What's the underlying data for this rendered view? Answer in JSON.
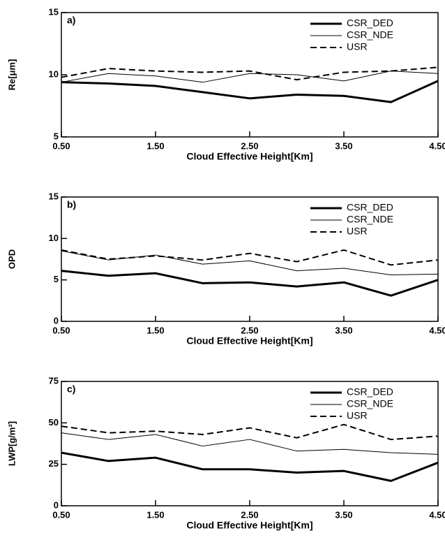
{
  "chart_data": [
    {
      "type": "line",
      "annotation": "a)",
      "x_label": "Cloud Effective Height[Km]",
      "y_label": "Re[μm]",
      "x": [
        0.5,
        1.0,
        1.5,
        2.0,
        2.5,
        3.0,
        3.5,
        4.0,
        4.5
      ],
      "xlim": [
        0.5,
        4.5
      ],
      "xticks": [
        {
          "value": 0.5,
          "label": "0.50"
        },
        {
          "value": 1.5,
          "label": "1.50"
        },
        {
          "value": 2.5,
          "label": "2.50"
        },
        {
          "value": 3.5,
          "label": "3.50"
        },
        {
          "value": 4.5,
          "label": "4.50"
        }
      ],
      "ylim": [
        5,
        15
      ],
      "yticks": [
        5,
        10,
        15
      ],
      "legend": "upper right",
      "series": [
        {
          "name": "CSR_DED",
          "color": "#000000",
          "width": 3,
          "dash": false,
          "values": [
            9.4,
            9.3,
            9.1,
            8.6,
            8.1,
            8.4,
            8.3,
            7.8,
            9.5
          ]
        },
        {
          "name": "CSR_NDE",
          "color": "#000000",
          "width": 1,
          "dash": false,
          "values": [
            9.4,
            10.1,
            9.9,
            9.4,
            10.1,
            10.0,
            9.5,
            10.3,
            10.1
          ]
        },
        {
          "name": "USR",
          "color": "#000000",
          "width": 2,
          "dash": true,
          "values": [
            9.8,
            10.5,
            10.3,
            10.2,
            10.3,
            9.6,
            10.2,
            10.3,
            10.6
          ]
        }
      ]
    },
    {
      "type": "line",
      "annotation": "b)",
      "x_label": "Cloud Effective Height[Km]",
      "y_label": "OPD",
      "x": [
        0.5,
        1.0,
        1.5,
        2.0,
        2.5,
        3.0,
        3.5,
        4.0,
        4.5
      ],
      "xlim": [
        0.5,
        4.5
      ],
      "xticks": [
        {
          "value": 0.5,
          "label": "0.50"
        },
        {
          "value": 1.5,
          "label": "1.50"
        },
        {
          "value": 2.5,
          "label": "2.50"
        },
        {
          "value": 3.5,
          "label": "3.50"
        },
        {
          "value": 4.5,
          "label": "4.50"
        }
      ],
      "ylim": [
        0,
        15
      ],
      "yticks": [
        0,
        5,
        10,
        15
      ],
      "legend": "upper right",
      "series": [
        {
          "name": "CSR_DED",
          "color": "#000000",
          "width": 3,
          "dash": false,
          "values": [
            6.1,
            5.5,
            5.8,
            4.6,
            4.7,
            4.2,
            4.7,
            3.1,
            5.0
          ]
        },
        {
          "name": "CSR_NDE",
          "color": "#000000",
          "width": 1,
          "dash": false,
          "values": [
            8.5,
            7.4,
            8.0,
            6.9,
            7.3,
            6.1,
            6.4,
            5.6,
            5.7
          ]
        },
        {
          "name": "USR",
          "color": "#000000",
          "width": 2,
          "dash": true,
          "values": [
            8.6,
            7.5,
            7.9,
            7.4,
            8.2,
            7.2,
            8.6,
            6.8,
            7.4
          ]
        }
      ]
    },
    {
      "type": "line",
      "annotation": "c)",
      "x_label": "Cloud Effective Height[Km]",
      "y_label": "LWP[g/m²]",
      "x": [
        0.5,
        1.0,
        1.5,
        2.0,
        2.5,
        3.0,
        3.5,
        4.0,
        4.5
      ],
      "xlim": [
        0.5,
        4.5
      ],
      "xticks": [
        {
          "value": 0.5,
          "label": "0.50"
        },
        {
          "value": 1.5,
          "label": "1.50"
        },
        {
          "value": 2.5,
          "label": "2.50"
        },
        {
          "value": 3.5,
          "label": "3.50"
        },
        {
          "value": 4.5,
          "label": "4.50"
        }
      ],
      "ylim": [
        0,
        75
      ],
      "yticks": [
        0,
        25,
        50,
        75
      ],
      "legend": "upper right",
      "series": [
        {
          "name": "CSR_DED",
          "color": "#000000",
          "width": 3,
          "dash": false,
          "values": [
            32,
            27,
            29,
            22,
            22,
            20,
            21,
            15,
            26
          ]
        },
        {
          "name": "CSR_NDE",
          "color": "#000000",
          "width": 1,
          "dash": false,
          "values": [
            44,
            40,
            43,
            36,
            40,
            33,
            34,
            32,
            31
          ]
        },
        {
          "name": "USR",
          "color": "#000000",
          "width": 2,
          "dash": true,
          "values": [
            48,
            44,
            45,
            43,
            47,
            41,
            49,
            40,
            42
          ]
        }
      ]
    }
  ]
}
